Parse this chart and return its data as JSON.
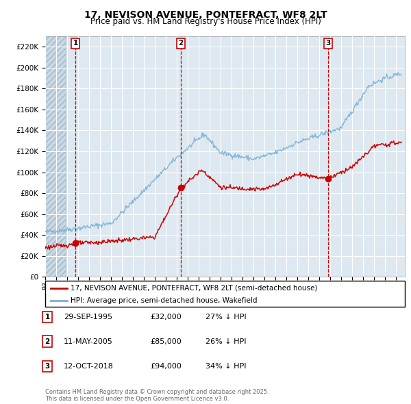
{
  "title": "17, NEVISON AVENUE, PONTEFRACT, WF8 2LT",
  "subtitle": "Price paid vs. HM Land Registry's House Price Index (HPI)",
  "legend_line1": "17, NEVISON AVENUE, PONTEFRACT, WF8 2LT (semi-detached house)",
  "legend_line2": "HPI: Average price, semi-detached house, Wakefield",
  "footer": "Contains HM Land Registry data © Crown copyright and database right 2025.\nThis data is licensed under the Open Government Licence v3.0.",
  "red_color": "#cc0000",
  "blue_color": "#7ab0d4",
  "bg_color": "#dde8f0",
  "hatch_color": "#c8d8e4",
  "grid_color": "#ffffff",
  "sale_dates": [
    1995.75,
    2005.36,
    2018.79
  ],
  "sale_prices": [
    32000,
    85000,
    94000
  ],
  "sale_labels": [
    "1",
    "2",
    "3"
  ],
  "sale_info": [
    {
      "num": "1",
      "date": "29-SEP-1995",
      "price": "£32,000",
      "pct": "27% ↓ HPI"
    },
    {
      "num": "2",
      "date": "11-MAY-2005",
      "price": "£85,000",
      "pct": "26% ↓ HPI"
    },
    {
      "num": "3",
      "date": "12-OCT-2018",
      "price": "£94,000",
      "pct": "34% ↓ HPI"
    }
  ],
  "ylim": [
    0,
    230000
  ],
  "yticks": [
    0,
    20000,
    40000,
    60000,
    80000,
    100000,
    120000,
    140000,
    160000,
    180000,
    200000,
    220000
  ],
  "xlim_start": 1993.0,
  "xlim_end": 2025.8
}
